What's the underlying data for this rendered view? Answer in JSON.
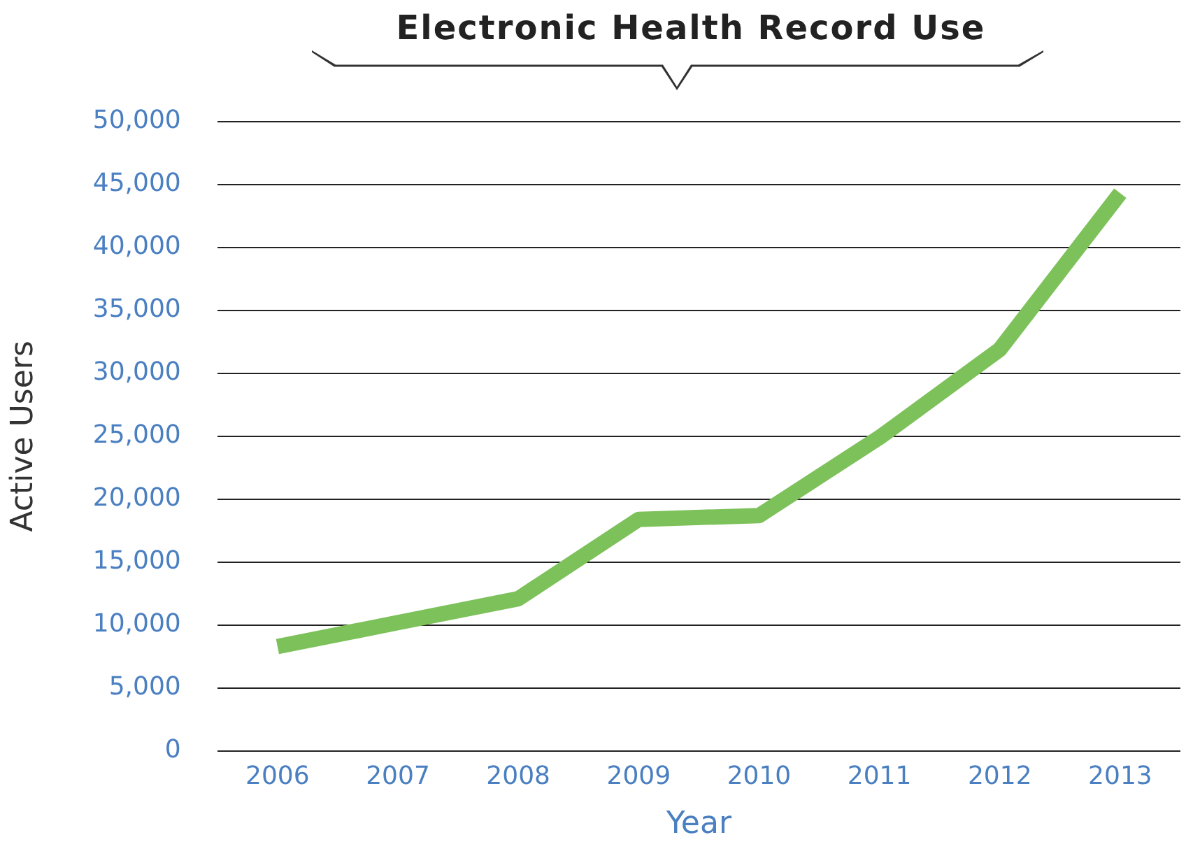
{
  "chart_data": {
    "type": "line",
    "title": "Electronic Health Record Use",
    "xlabel": "Year",
    "ylabel": "Active Users",
    "categories": [
      "2006",
      "2007",
      "2008",
      "2009",
      "2010",
      "2011",
      "2012",
      "2013"
    ],
    "series": [
      {
        "color": "#7dc15a",
        "values": [
          8300,
          10200,
          12100,
          18400,
          18700,
          24900,
          31900,
          44300
        ]
      }
    ],
    "ylim": [
      0,
      50000
    ],
    "yticks": [
      {
        "value": 0,
        "label": "0"
      },
      {
        "value": 5000,
        "label": "5,000"
      },
      {
        "value": 10000,
        "label": "10,000"
      },
      {
        "value": 15000,
        "label": "15,000"
      },
      {
        "value": 20000,
        "label": "20,000"
      },
      {
        "value": 25000,
        "label": "25,000"
      },
      {
        "value": 30000,
        "label": "30,000"
      },
      {
        "value": 35000,
        "label": "35,000"
      },
      {
        "value": 40000,
        "label": "40,000"
      },
      {
        "value": 45000,
        "label": "45,000"
      },
      {
        "value": 50000,
        "label": "50,000"
      }
    ],
    "grid": "y",
    "legend": false,
    "marker": "none",
    "line_style": "solid"
  }
}
